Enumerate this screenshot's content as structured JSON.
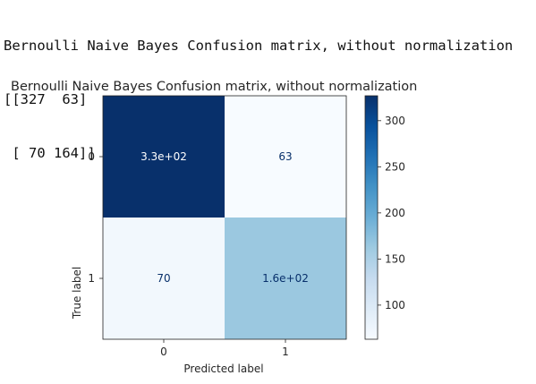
{
  "console": {
    "line1": "Bernoulli Naive Bayes Confusion matrix, without normalization",
    "line2": "[[327  63]",
    "line3": " [ 70 164]]"
  },
  "chart_data": {
    "type": "heatmap",
    "title": "Bernoulli Naive Bayes Confusion matrix, without normalization",
    "xlabel": "Predicted label",
    "ylabel": "True label",
    "x_categories": [
      "0",
      "1"
    ],
    "y_categories": [
      "0",
      "1"
    ],
    "values": [
      [
        327,
        63
      ],
      [
        70,
        164
      ]
    ],
    "cell_labels": [
      [
        "3.3e+02",
        "63"
      ],
      [
        "70",
        "1.6e+02"
      ]
    ],
    "colormap": "Blues",
    "colorbar": {
      "ticks": [
        100,
        150,
        200,
        250,
        300
      ],
      "range": [
        63,
        327
      ]
    },
    "colors": {
      "low": "#f4f9fe",
      "mid_low": "#9ccae1",
      "high": "#08306b",
      "text_dark_cell": "#ffffff",
      "text_light_cell": "#08306b"
    }
  }
}
